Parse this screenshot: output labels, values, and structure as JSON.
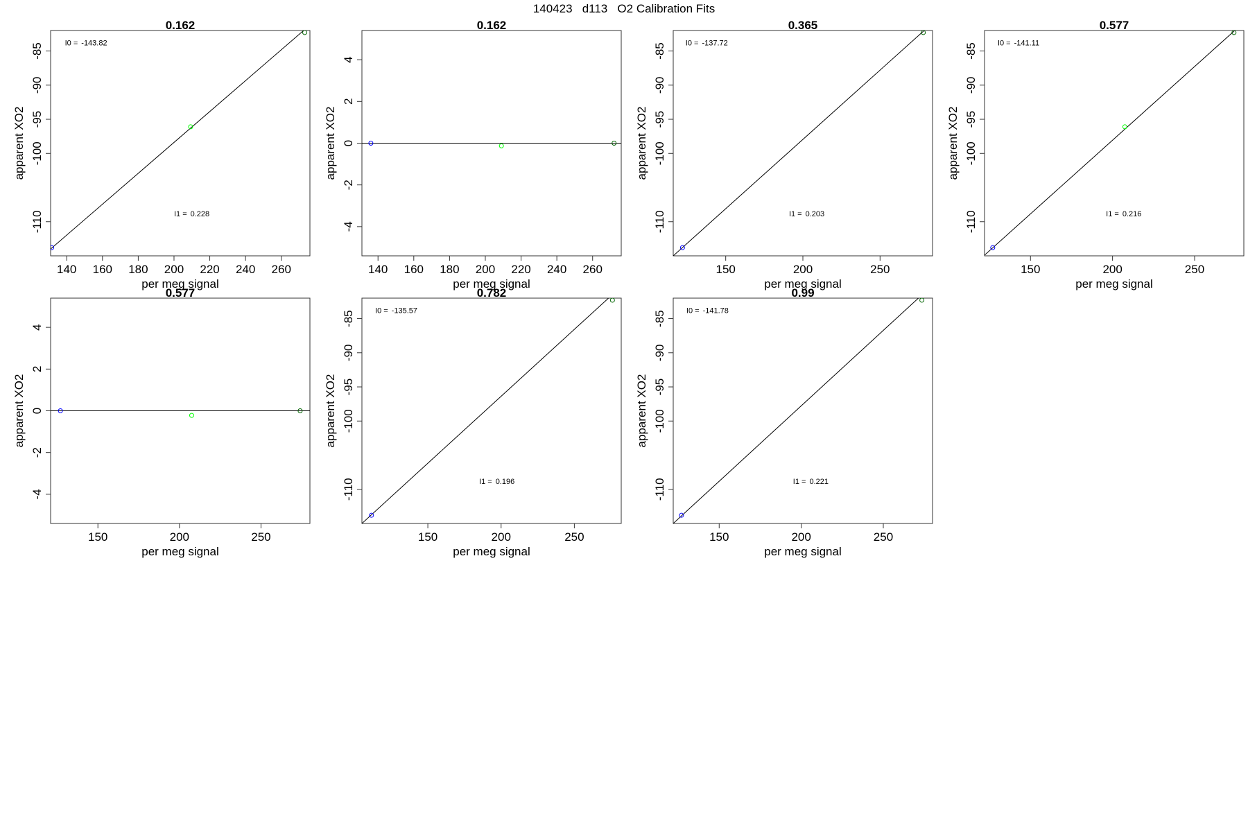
{
  "page": {
    "title": "140423   d113   O2 Calibration Fits"
  },
  "chart_data": [
    {
      "type": "scatter",
      "title": "0.162",
      "xlabel": "per meg signal",
      "ylabel": "apparent XO2",
      "xlim": [
        131,
        276
      ],
      "ylim": [
        -115,
        -82
      ],
      "xticks": [
        140,
        160,
        180,
        200,
        220,
        240,
        260
      ],
      "yticks": [
        -85,
        -90,
        -95,
        -100,
        -110
      ],
      "points": [
        {
          "x": 131.6,
          "y": -113.8,
          "color": "#0000ff"
        },
        {
          "x": 209.3,
          "y": -96.1,
          "color": "#00ff00"
        },
        {
          "x": 273.1,
          "y": -82.3,
          "color": "#006400"
        }
      ],
      "fit_line": [
        [
          131,
          -114.0
        ],
        [
          276,
          -81.2
        ]
      ],
      "annotations": [
        {
          "label": "I0 =",
          "value": "-143.82",
          "x": 139,
          "y": -84.2
        },
        {
          "label": "I1 =",
          "value": "0.228",
          "x": 200,
          "y": -109.2
        }
      ]
    },
    {
      "type": "scatter",
      "title": "0.162",
      "xlabel": "per meg signal",
      "ylabel": "apparent XO2",
      "xlim": [
        131,
        276
      ],
      "ylim": [
        -5.4,
        5.4
      ],
      "xticks": [
        140,
        160,
        180,
        200,
        220,
        240,
        260
      ],
      "yticks": [
        4,
        2,
        0,
        -2,
        -4
      ],
      "points": [
        {
          "x": 136.0,
          "y": 0.0,
          "color": "#0000ff"
        },
        {
          "x": 209.0,
          "y": -0.13,
          "color": "#00ff00"
        },
        {
          "x": 272.0,
          "y": 0.0,
          "color": "#006400"
        }
      ],
      "fit_line": [
        [
          131,
          0
        ],
        [
          276,
          0
        ]
      ],
      "annotations": []
    },
    {
      "type": "scatter",
      "title": "0.365",
      "xlabel": "per meg signal",
      "ylabel": "apparent XO2",
      "xlim": [
        116,
        284
      ],
      "ylim": [
        -115,
        -82
      ],
      "xticks": [
        150,
        200,
        250
      ],
      "yticks": [
        -85,
        -90,
        -95,
        -100,
        -110
      ],
      "points": [
        {
          "x": 122.0,
          "y": -113.8,
          "color": "#0000ff"
        },
        {
          "x": 278.0,
          "y": -82.3,
          "color": "#006400"
        }
      ],
      "fit_line": [
        [
          116,
          -115.0
        ],
        [
          284,
          -80.9
        ]
      ],
      "annotations": [
        {
          "label": "I0 =",
          "value": "-137.72",
          "x": 124,
          "y": -84.2
        },
        {
          "label": "I1 =",
          "value": "0.203",
          "x": 191,
          "y": -109.2
        }
      ]
    },
    {
      "type": "scatter",
      "title": "0.577",
      "xlabel": "per meg signal",
      "ylabel": "apparent XO2",
      "xlim": [
        122,
        280
      ],
      "ylim": [
        -115,
        -82
      ],
      "xticks": [
        150,
        200,
        250
      ],
      "yticks": [
        -85,
        -90,
        -95,
        -100,
        -110
      ],
      "points": [
        {
          "x": 127.0,
          "y": -113.8,
          "color": "#0000ff"
        },
        {
          "x": 207.5,
          "y": -96.1,
          "color": "#00ff00"
        },
        {
          "x": 274.0,
          "y": -82.3,
          "color": "#006400"
        }
      ],
      "fit_line": [
        [
          122,
          -114.9
        ],
        [
          280,
          -80.8
        ]
      ],
      "annotations": [
        {
          "label": "I0 =",
          "value": "-141.11",
          "x": 130,
          "y": -84.2
        },
        {
          "label": "I1 =",
          "value": "0.216",
          "x": 196,
          "y": -109.2
        }
      ]
    },
    {
      "type": "scatter",
      "title": "0.577",
      "xlabel": "per meg signal",
      "ylabel": "apparent XO2",
      "xlim": [
        121,
        280
      ],
      "ylim": [
        -5.4,
        5.4
      ],
      "xticks": [
        150,
        200,
        250
      ],
      "yticks": [
        4,
        2,
        0,
        -2,
        -4
      ],
      "points": [
        {
          "x": 127.0,
          "y": 0.0,
          "color": "#0000ff"
        },
        {
          "x": 207.5,
          "y": -0.22,
          "color": "#00ff00"
        },
        {
          "x": 274.0,
          "y": 0.0,
          "color": "#006400"
        }
      ],
      "fit_line": [
        [
          121,
          0
        ],
        [
          280,
          0
        ]
      ],
      "annotations": []
    },
    {
      "type": "scatter",
      "title": "0.782",
      "xlabel": "per meg signal",
      "ylabel": "apparent XO2",
      "xlim": [
        105,
        282
      ],
      "ylim": [
        -115,
        -82
      ],
      "xticks": [
        150,
        200,
        250
      ],
      "yticks": [
        -85,
        -90,
        -95,
        -100,
        -110
      ],
      "points": [
        {
          "x": 111.5,
          "y": -113.8,
          "color": "#0000ff"
        },
        {
          "x": 276.0,
          "y": -82.3,
          "color": "#006400"
        }
      ],
      "fit_line": [
        [
          105,
          -115.0
        ],
        [
          282,
          -80.3
        ]
      ],
      "annotations": [
        {
          "label": "I0 =",
          "value": "-135.57",
          "x": 114,
          "y": -84.2
        },
        {
          "label": "I1 =",
          "value": "0.196",
          "x": 185,
          "y": -109.2
        }
      ]
    },
    {
      "type": "scatter",
      "title": "0.99",
      "xlabel": "per meg signal",
      "ylabel": "apparent XO2",
      "xlim": [
        122,
        280
      ],
      "ylim": [
        -115,
        -82
      ],
      "xticks": [
        150,
        200,
        250
      ],
      "yticks": [
        -85,
        -90,
        -95,
        -100,
        -110
      ],
      "points": [
        {
          "x": 127.0,
          "y": -113.8,
          "color": "#0000ff"
        },
        {
          "x": 273.5,
          "y": -82.3,
          "color": "#006400"
        }
      ],
      "fit_line": [
        [
          122,
          -115.0
        ],
        [
          280,
          -80.1
        ]
      ],
      "annotations": [
        {
          "label": "I0 =",
          "value": "-141.78",
          "x": 130,
          "y": -84.2
        },
        {
          "label": "I1 =",
          "value": "0.221",
          "x": 195,
          "y": -109.2
        }
      ]
    }
  ]
}
